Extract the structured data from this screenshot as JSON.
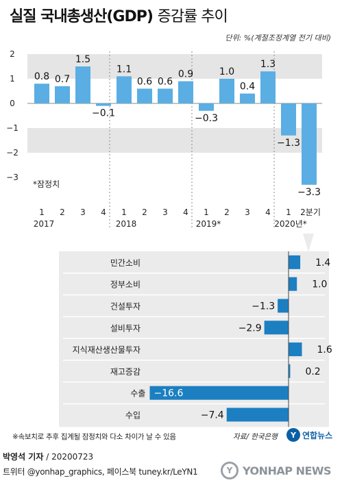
{
  "title": {
    "main": "실질 국내총생산(GDP)",
    "sub": "증감률 추이"
  },
  "unit": "단위: %(계절조정계열 전기 대비)",
  "colors": {
    "bar": "#5aaee3",
    "hbar": "#1c7fc1",
    "band": "#e5e5e5",
    "panel": "#ebebeb"
  },
  "chart_data": [
    {
      "type": "bar",
      "categories": [
        "2017-1",
        "2017-2",
        "2017-3",
        "2017-4",
        "2018-1",
        "2018-2",
        "2018-3",
        "2018-4",
        "2019-1",
        "2019-2",
        "2019-3",
        "2019-4",
        "2020-1",
        "2020-2"
      ],
      "values": [
        0.8,
        0.7,
        1.5,
        -0.1,
        1.1,
        0.6,
        0.6,
        0.9,
        -0.3,
        1.0,
        0.4,
        1.3,
        -1.3,
        -3.3
      ],
      "value_labels": [
        "0.8",
        "0.7",
        "1.5",
        "−0.1",
        "1.1",
        "0.6",
        "0.6",
        "0.9",
        "−0.3",
        "1.0",
        "0.4",
        "1.3",
        "−1.3",
        "−3.3"
      ],
      "quarter_labels": [
        "1",
        "2",
        "3",
        "4",
        "1",
        "2",
        "3",
        "4",
        "1",
        "2",
        "3",
        "4",
        "1",
        "2분기"
      ],
      "year_labels": [
        "2017",
        "2018",
        "2019*",
        "2020년*"
      ],
      "yticks": [
        2,
        1,
        0,
        -1,
        -2,
        -3
      ],
      "ytick_labels": [
        "2",
        "1",
        "0",
        "−1",
        "−2",
        "−3"
      ],
      "ylim": [
        -3.3,
        2.0
      ],
      "annotation": "*잠정치"
    },
    {
      "type": "bar",
      "orientation": "horizontal",
      "categories": [
        "민간소비",
        "정부소비",
        "건설투자",
        "설비투자",
        "지식재산생산물투자",
        "재고증감",
        "수출",
        "수입"
      ],
      "values": [
        1.4,
        1.0,
        -1.3,
        -2.9,
        1.6,
        0.2,
        -16.6,
        -7.4
      ],
      "value_labels": [
        "1.4",
        "1.0",
        "−1.3",
        "−2.9",
        "1.6",
        "0.2",
        "−16.6",
        "−7.4"
      ]
    }
  ],
  "footer": {
    "note": "※속보치로 추후 집계될 잠정치와 다소 차이가 날 수 있음",
    "source": "자료/ 한국은행",
    "logo_mark": "Y",
    "logo_text": "연합뉴스",
    "reporter": "박영석 기자",
    "date": "20200723",
    "social": "트위터 @yonhap_graphics, 페이스북 tuney.kr/LeYN1",
    "watermark": "YONHAP NEWS",
    "watermark_mark": "Y"
  }
}
